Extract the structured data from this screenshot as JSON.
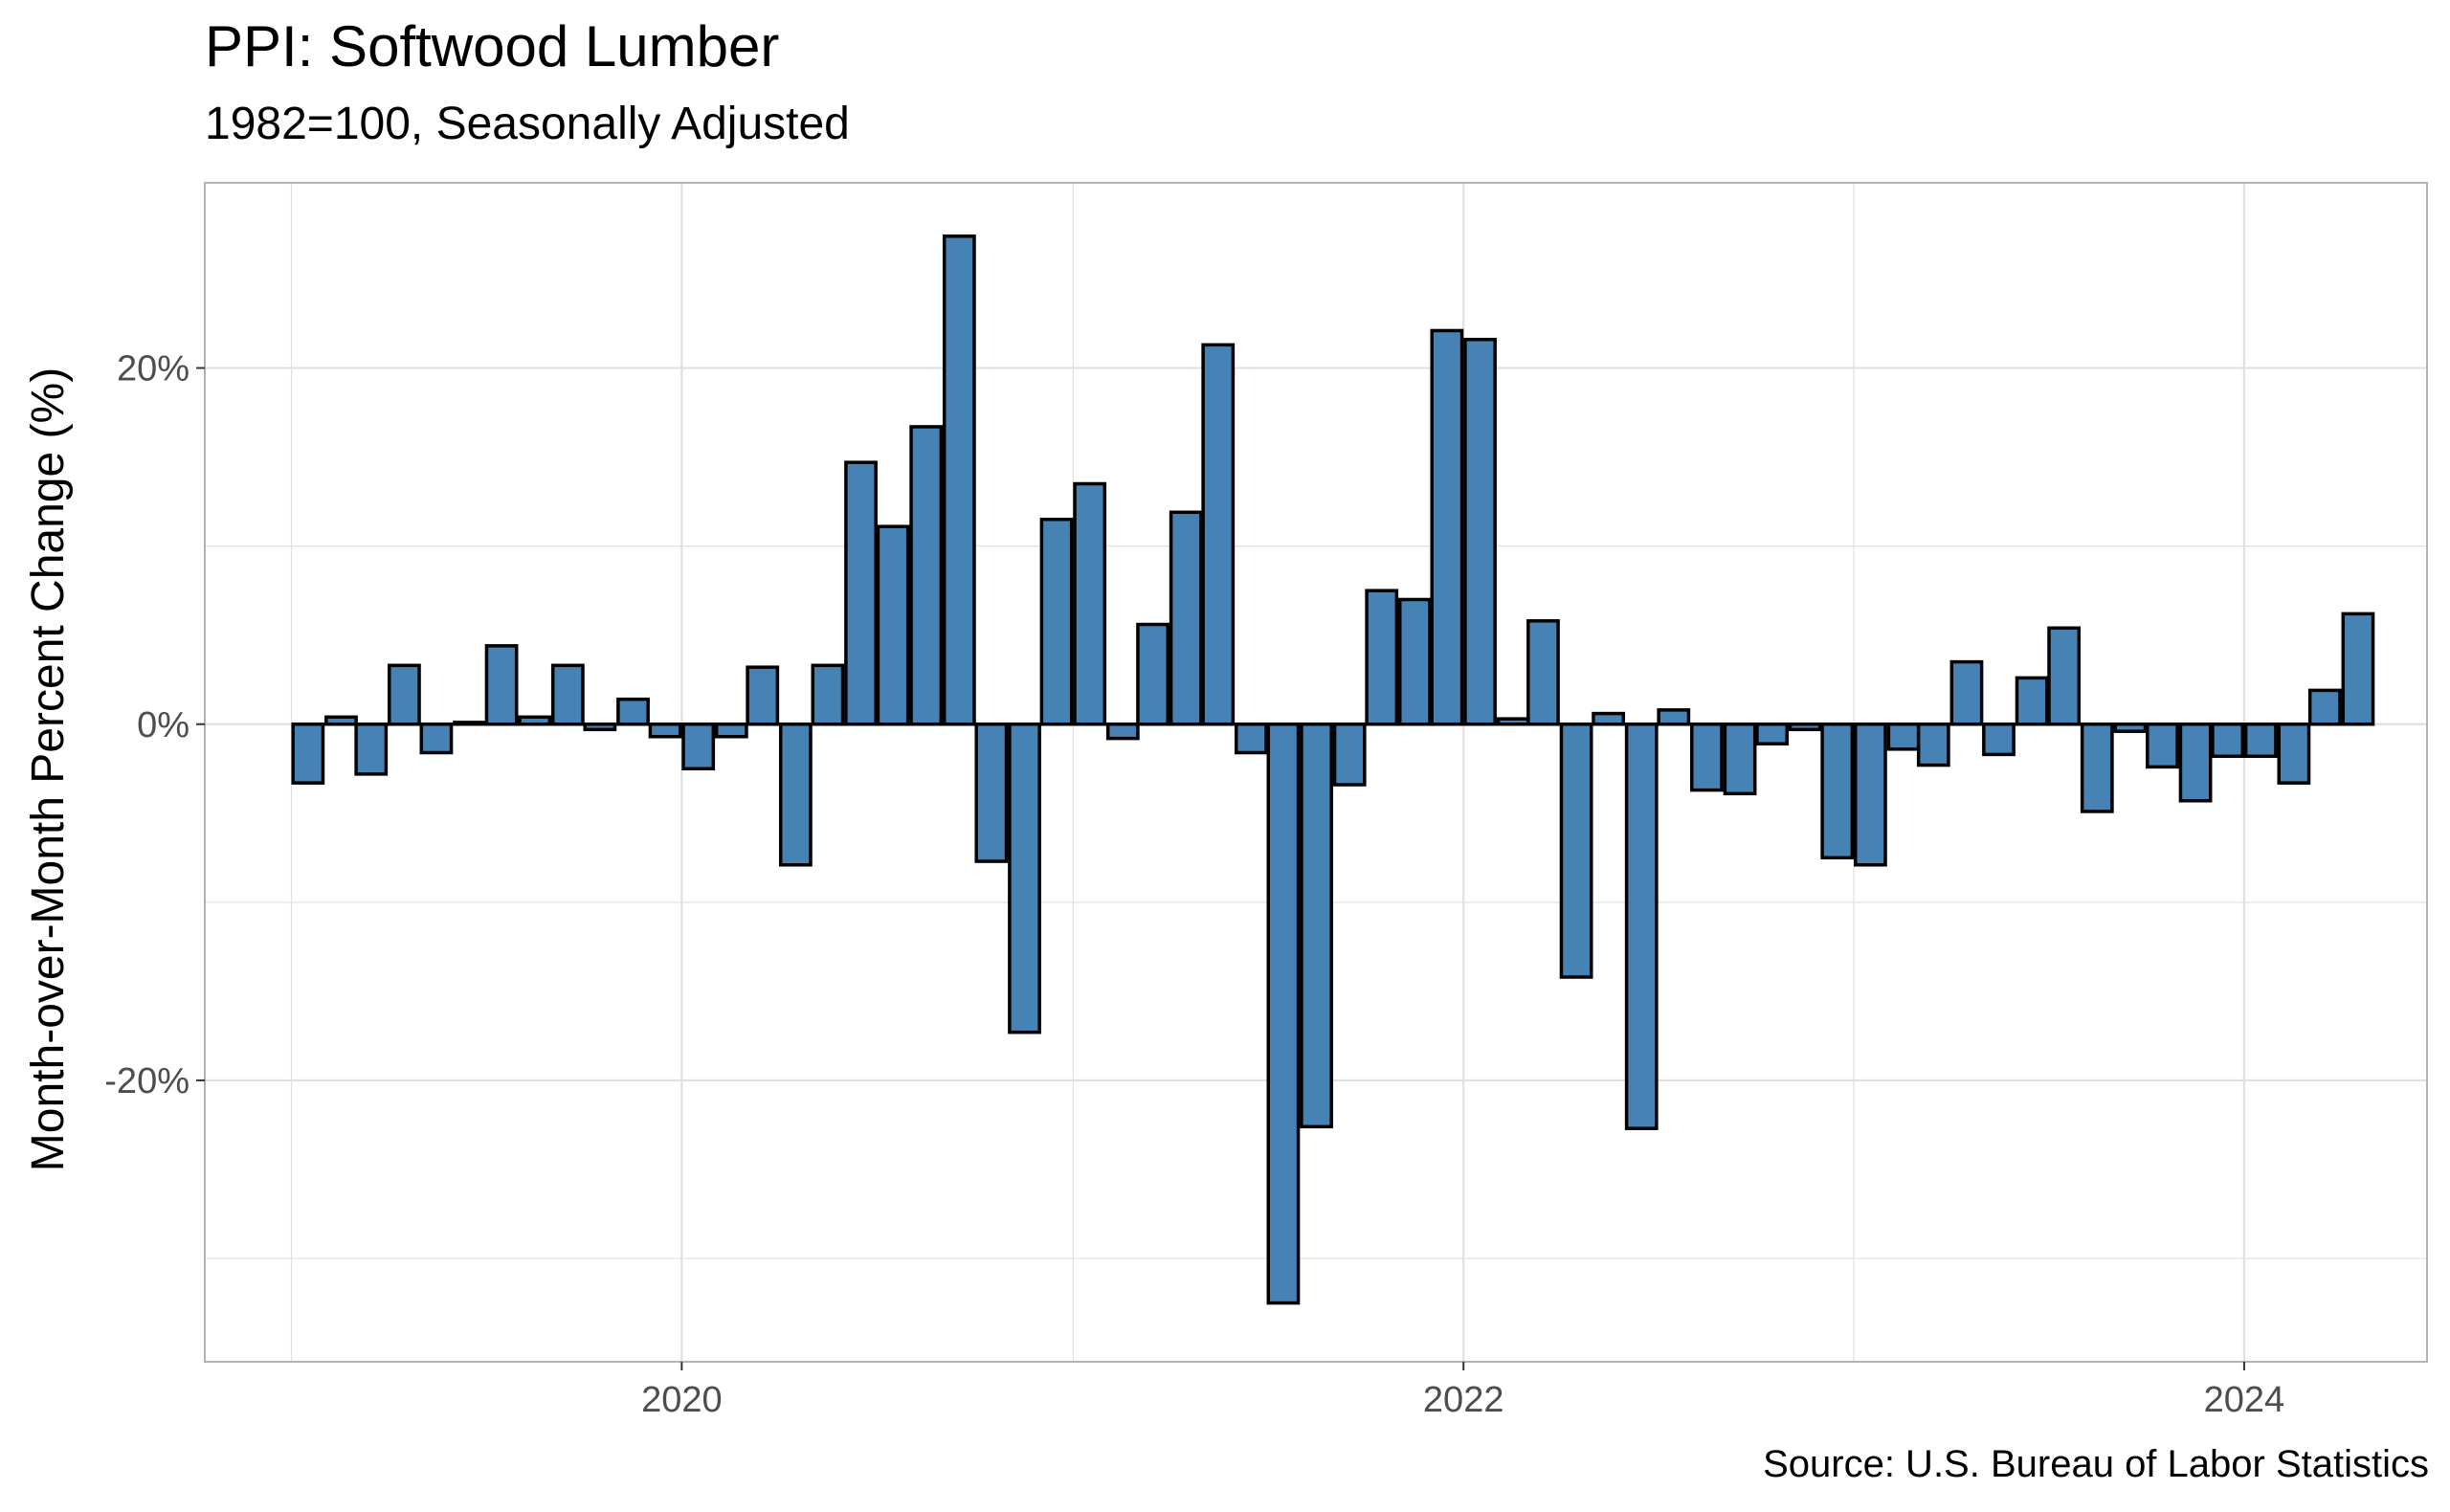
{
  "chart_data": {
    "type": "bar",
    "title": "PPI: Softwood Lumber",
    "subtitle": "1982=100, Seasonally Adjusted",
    "xlabel": "",
    "ylabel": "Month-over-Month Percent Change (%)",
    "caption": "Source: U.S. Bureau of Labor Statistics",
    "x_ticks": [
      {
        "date": "2020-01-01",
        "label": "2020"
      },
      {
        "date": "2022-01-01",
        "label": "2022"
      },
      {
        "date": "2024-01-01",
        "label": "2024"
      }
    ],
    "y_ticks": [
      {
        "value": -20,
        "label": "-20%"
      },
      {
        "value": 0,
        "label": "0%"
      },
      {
        "value": 20,
        "label": "20%"
      }
    ],
    "xlim": [
      "2018-10-12",
      "2024-06-20"
    ],
    "ylim": [
      -35.8,
      30.4
    ],
    "grid": true,
    "legend": "none",
    "colors": {
      "fill": "#4682b4",
      "outline": "#000000",
      "grid": "#e0e0e0",
      "panel_border": "#b3b3b3"
    },
    "dates": [
      "2019-01",
      "2019-02",
      "2019-03",
      "2019-04",
      "2019-05",
      "2019-06",
      "2019-07",
      "2019-08",
      "2019-09",
      "2019-10",
      "2019-11",
      "2019-12",
      "2020-01",
      "2020-02",
      "2020-03",
      "2020-04",
      "2020-05",
      "2020-06",
      "2020-07",
      "2020-08",
      "2020-09",
      "2020-10",
      "2020-11",
      "2020-12",
      "2021-01",
      "2021-02",
      "2021-03",
      "2021-04",
      "2021-05",
      "2021-06",
      "2021-07",
      "2021-08",
      "2021-09",
      "2021-10",
      "2021-11",
      "2021-12",
      "2022-01",
      "2022-02",
      "2022-03",
      "2022-04",
      "2022-05",
      "2022-06",
      "2022-07",
      "2022-08",
      "2022-09",
      "2022-10",
      "2022-11",
      "2022-12",
      "2023-01",
      "2023-02",
      "2023-03",
      "2023-04",
      "2023-05",
      "2023-06",
      "2023-07",
      "2023-08",
      "2023-09",
      "2023-10",
      "2023-11",
      "2023-12",
      "2024-01",
      "2024-02",
      "2024-03",
      "2024-04"
    ],
    "values": [
      -3.3,
      0.4,
      -2.8,
      3.3,
      -1.6,
      0.1,
      4.4,
      0.4,
      3.3,
      -0.3,
      1.4,
      -0.7,
      -2.5,
      -0.7,
      3.2,
      -7.9,
      3.3,
      14.7,
      11.1,
      16.7,
      27.4,
      -7.7,
      -17.3,
      11.5,
      13.5,
      -0.8,
      5.6,
      11.9,
      21.3,
      -1.6,
      -32.5,
      -22.6,
      -3.4,
      7.5,
      7.0,
      22.1,
      21.6,
      0.3,
      5.8,
      -14.2,
      0.6,
      -22.7,
      0.8,
      -3.7,
      -3.9,
      -1.1,
      -0.3,
      -7.5,
      -7.9,
      -1.4,
      -2.3,
      3.5,
      -1.7,
      2.6,
      5.4,
      -4.9,
      -0.4,
      -2.4,
      -4.3,
      -1.8,
      -1.8,
      -3.3,
      1.9,
      6.2
    ]
  }
}
